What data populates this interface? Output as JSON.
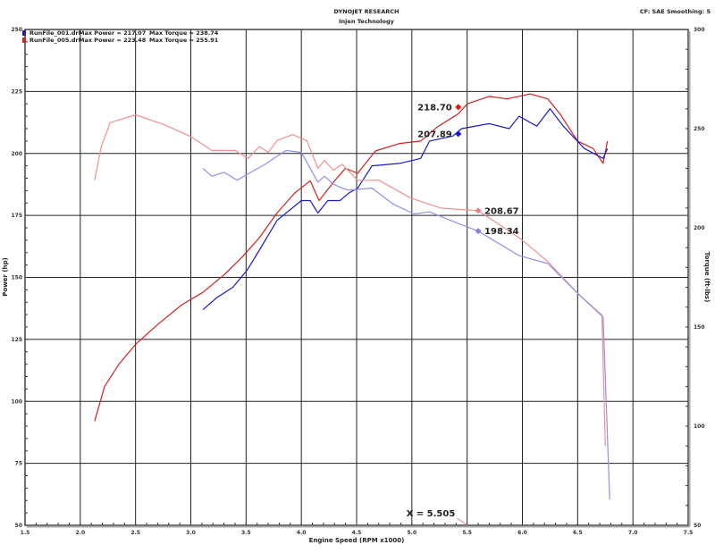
{
  "header": {
    "company": "DYNOJET RESEARCH",
    "subtitle": "Injen Technology",
    "settings": "CF: SAE  Smoothing: 5"
  },
  "legend": [
    {
      "file": "RunFile_001.drf",
      "max_power": "Max Power = 217.07",
      "max_torque": "Max Torque = 238.74",
      "color": "#1a1acc"
    },
    {
      "file": "RunFile_005.drf",
      "max_power": "Max Power = 223.48",
      "max_torque": "Max Torque = 255.91",
      "color": "#e02020"
    }
  ],
  "chart_data": {
    "type": "line",
    "title": "",
    "xlabel": "Engine Speed (RPM x1000)",
    "ylabel": "Power (hp)",
    "y2label": "Torque (ft-lbs)",
    "xlim": [
      1.5,
      7.5
    ],
    "ylim": [
      50,
      250
    ],
    "y2lim": [
      50,
      300
    ],
    "x_ticks": [
      "1.5",
      "2.0",
      "2.5",
      "3.0",
      "3.5",
      "4.0",
      "4.5",
      "5.0",
      "5.5",
      "6.0",
      "6.5",
      "7.0",
      "7.5"
    ],
    "y_ticks": [
      "250",
      "225",
      "200",
      "175",
      "150",
      "125",
      "100",
      "75",
      "50"
    ],
    "y2_ticks": [
      "300",
      "250",
      "200",
      "150",
      "100",
      "50"
    ],
    "grid": true,
    "legend_position": "top-left",
    "series": [
      {
        "name": "RunFile_005.drf",
        "measure": "power",
        "axis": "left",
        "color": "#d42020",
        "x": [
          2.13,
          2.22,
          2.35,
          2.5,
          2.7,
          2.92,
          3.11,
          3.3,
          3.46,
          3.62,
          3.78,
          3.94,
          4.08,
          4.16,
          4.32,
          4.4,
          4.51,
          4.67,
          4.89,
          5.08,
          5.24,
          5.42,
          5.5,
          5.7,
          5.86,
          6.07,
          6.23,
          6.34,
          6.5,
          6.64,
          6.73,
          6.77
        ],
        "y": [
          92,
          106,
          115,
          123,
          131,
          139,
          144,
          151,
          158,
          166,
          176,
          184,
          189,
          181,
          190,
          194,
          192,
          201,
          204,
          205,
          211,
          216,
          220,
          223,
          222,
          224,
          222,
          216,
          205,
          202,
          196,
          205
        ]
      },
      {
        "name": "RunFile_001.drf",
        "measure": "power",
        "axis": "left",
        "color": "#1a1acc",
        "x": [
          3.11,
          3.24,
          3.38,
          3.51,
          3.62,
          3.78,
          4.0,
          4.08,
          4.15,
          4.24,
          4.35,
          4.43,
          4.51,
          4.64,
          4.89,
          5.08,
          5.16,
          5.37,
          5.45,
          5.7,
          5.88,
          5.97,
          6.13,
          6.25,
          6.37,
          6.56,
          6.73,
          6.77
        ],
        "y": [
          137,
          142,
          146,
          153,
          161,
          173,
          181,
          181,
          176,
          181,
          181,
          184,
          186,
          195,
          196,
          198,
          205,
          207,
          210,
          212,
          210,
          215,
          211,
          218,
          211,
          202,
          198,
          202
        ]
      },
      {
        "name": "RunFile_005.drf",
        "measure": "torque",
        "axis": "right",
        "color": "#f09090",
        "x": [
          2.13,
          2.19,
          2.27,
          2.5,
          2.76,
          3.0,
          3.19,
          3.4,
          3.52,
          3.62,
          3.7,
          3.78,
          3.92,
          4.05,
          4.15,
          4.21,
          4.29,
          4.37,
          4.51,
          4.7,
          4.99,
          5.26,
          5.5,
          5.6,
          5.97,
          6.23,
          6.5,
          6.72,
          6.75
        ],
        "y": [
          224,
          241,
          253,
          257,
          252,
          246,
          239,
          239,
          235,
          241,
          238,
          244,
          247,
          244,
          230,
          234,
          229,
          232,
          224,
          224,
          215,
          210,
          209,
          208.67,
          195,
          183,
          167,
          156,
          90
        ]
      },
      {
        "name": "RunFile_001.drf",
        "measure": "torque",
        "axis": "right",
        "color": "#9090e8",
        "x": [
          3.11,
          3.19,
          3.3,
          3.42,
          3.51,
          3.67,
          3.86,
          4.0,
          4.15,
          4.21,
          4.29,
          4.37,
          4.43,
          4.64,
          4.83,
          5.02,
          5.16,
          5.43,
          5.6,
          5.97,
          6.23,
          6.5,
          6.73,
          6.79
        ],
        "y": [
          230,
          226,
          228,
          224,
          227,
          232,
          239,
          238,
          223,
          226,
          222,
          220,
          219,
          220,
          212,
          207,
          208,
          202,
          198.34,
          186,
          182,
          167,
          155,
          63
        ]
      }
    ],
    "annotations": [
      {
        "label": "218.70",
        "x": 5.42,
        "y": 218.7,
        "axis": "left",
        "color": "#ee1111",
        "side": "left"
      },
      {
        "label": "207.89",
        "x": 5.42,
        "y": 207.89,
        "axis": "left",
        "color": "#1111ee",
        "side": "left"
      },
      {
        "label": "208.67",
        "x": 5.6,
        "y": 208.67,
        "axis": "right",
        "color": "#f08080",
        "side": "right"
      },
      {
        "label": "198.34",
        "x": 5.6,
        "y": 198.34,
        "axis": "right",
        "color": "#8080e8",
        "side": "right"
      }
    ],
    "cursor": {
      "label": "X = 5.505",
      "x": 5.505
    }
  }
}
